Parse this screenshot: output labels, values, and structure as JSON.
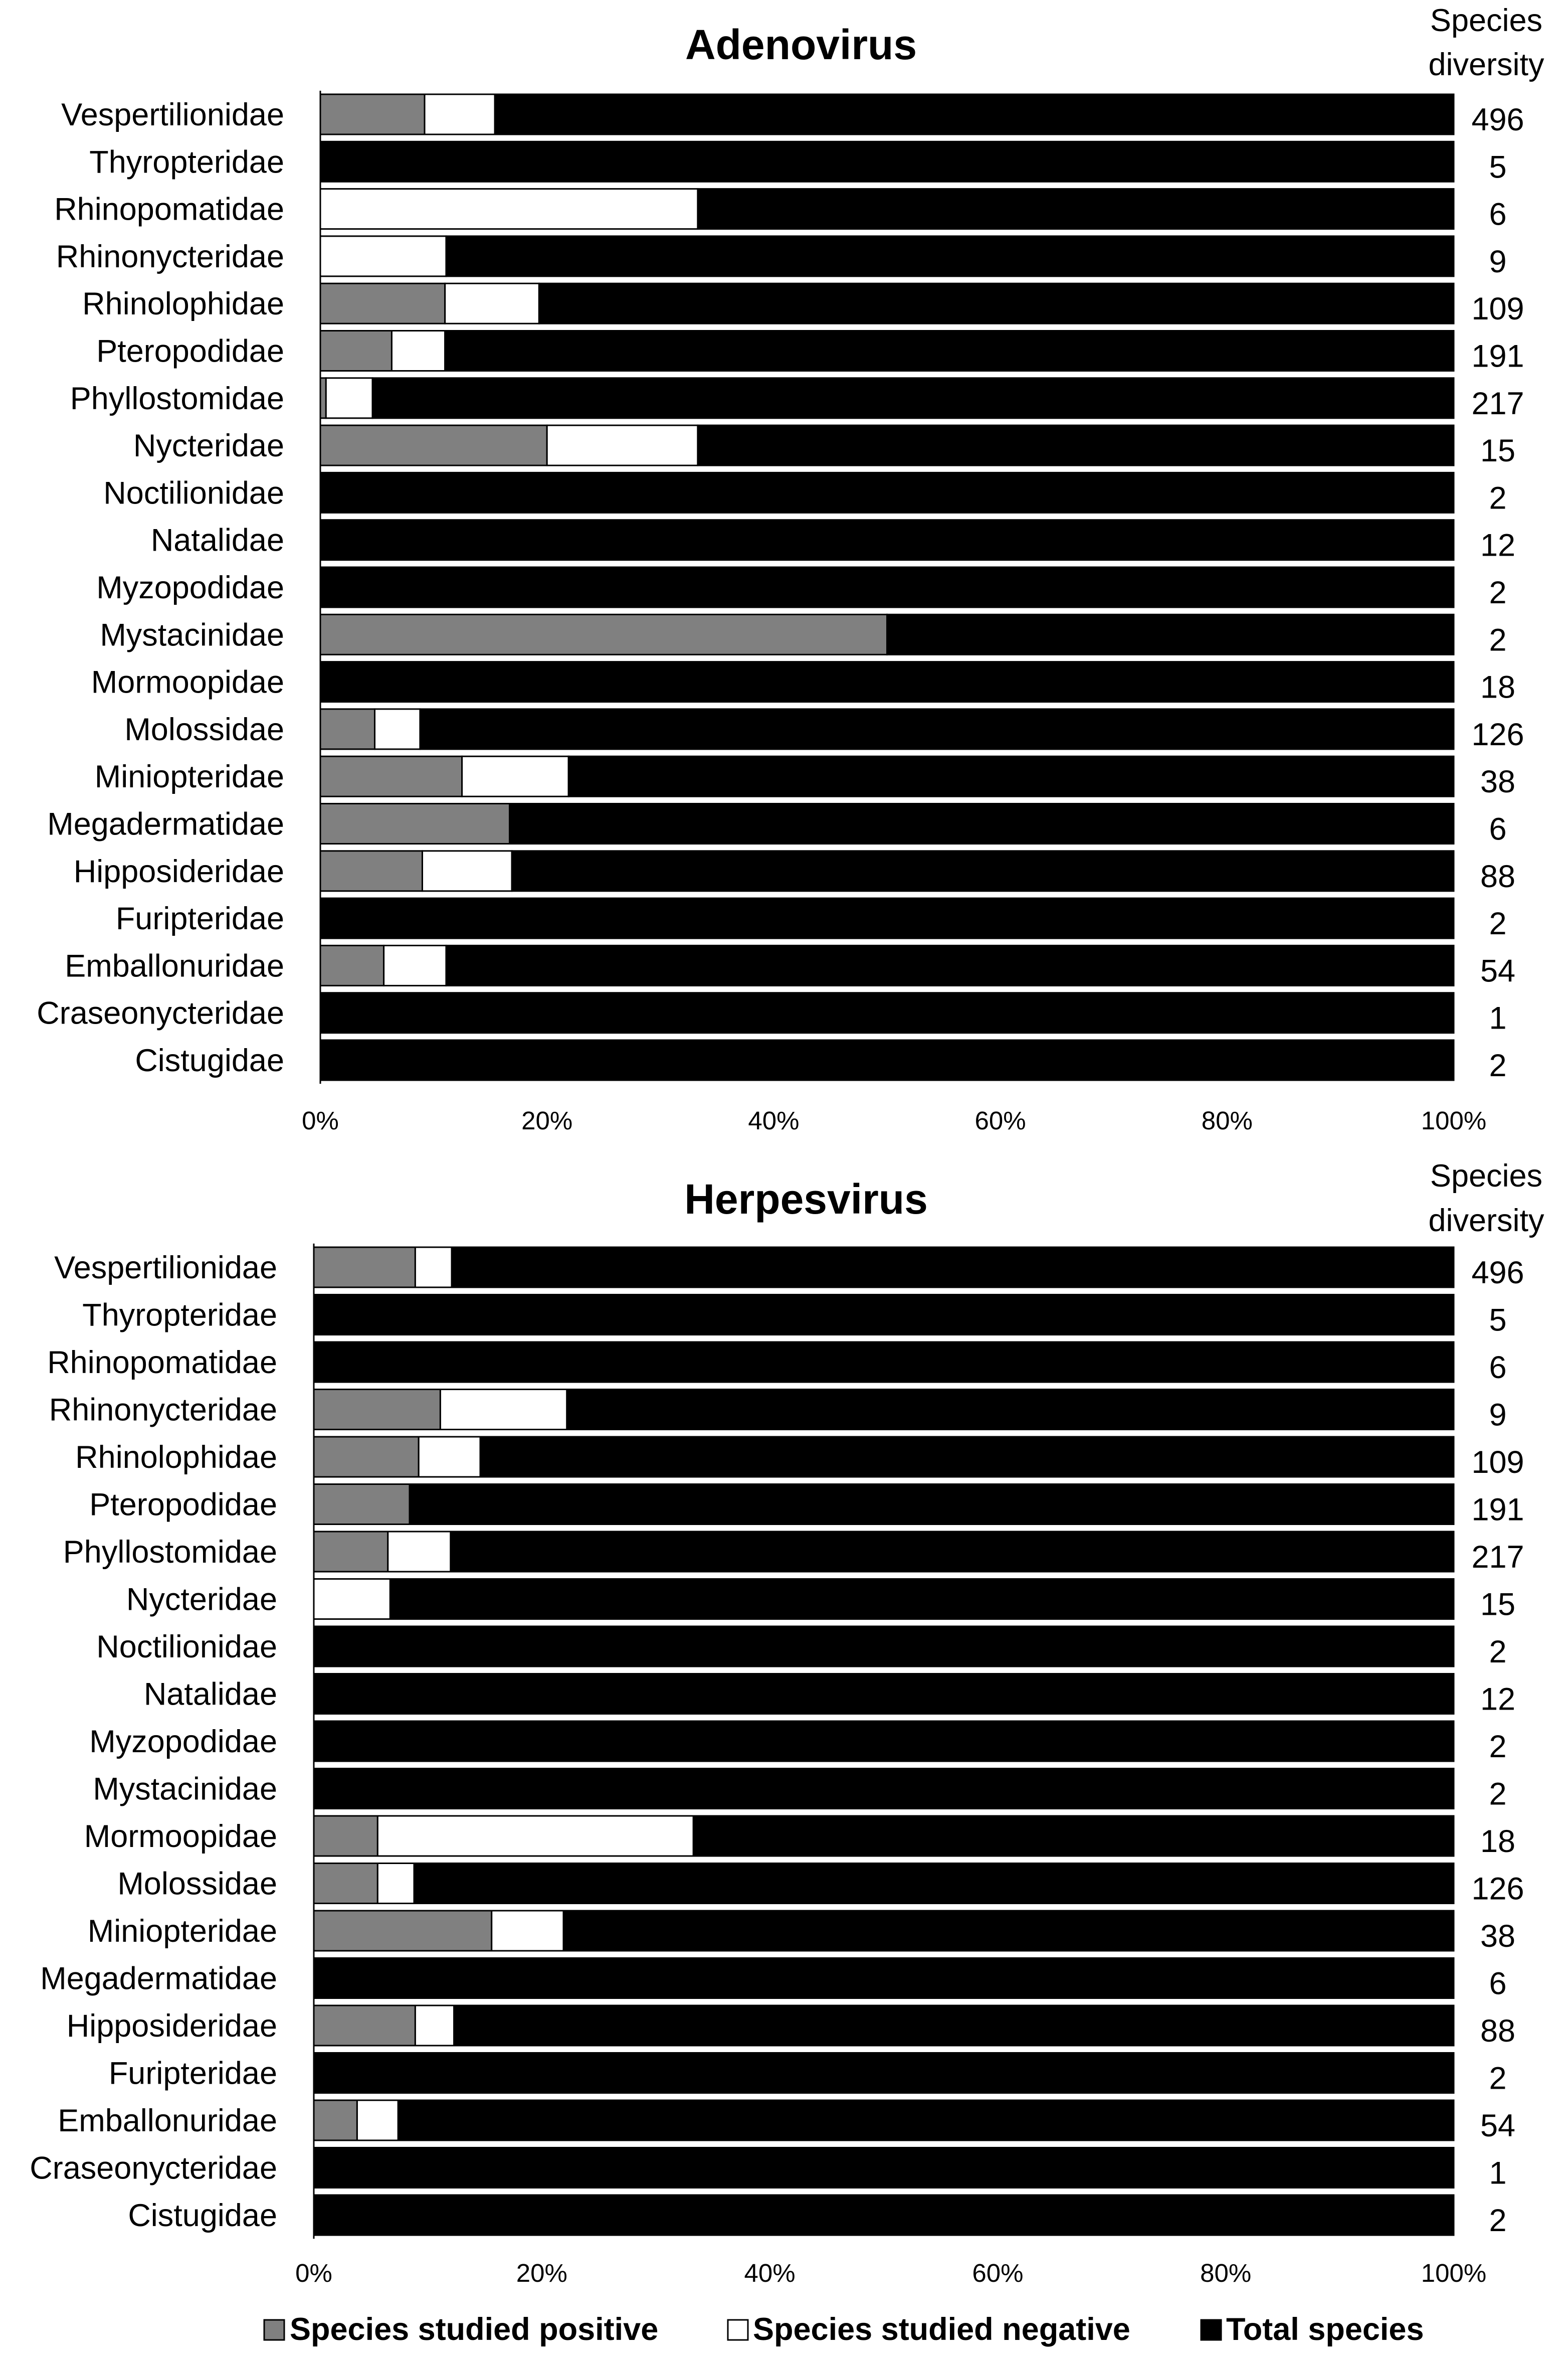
{
  "legend": [
    {
      "label": "Species studied positive",
      "color": "#808080"
    },
    {
      "label": "Species studied negative",
      "color": "#ffffff"
    },
    {
      "label": "Total species",
      "color": "#000000"
    }
  ],
  "colors": {
    "positive": "#808080",
    "negative": "#ffffff",
    "total": "#000000",
    "stroke": "#000000"
  },
  "chart_data": [
    {
      "type": "bar",
      "stacked": true,
      "orientation": "horizontal",
      "title": "Adenovirus",
      "right_header": [
        "Species",
        "diversity"
      ],
      "x_ticks": [
        "0%",
        "20%",
        "40%",
        "60%",
        "80%",
        "100%"
      ],
      "xlim": [
        0,
        100
      ],
      "categories": [
        "Vespertilionidae",
        "Thyropteridae",
        "Rhinopomatidae",
        "Rhinonycteridae",
        "Rhinolophidae",
        "Pteropodidae",
        "Phyllostomidae",
        "Nycteridae",
        "Noctilionidae",
        "Natalidae",
        "Myzopodidae",
        "Mystacinidae",
        "Mormoopidae",
        "Molossidae",
        "Miniopteridae",
        "Megadermatidae",
        "Hipposideridae",
        "Furipteridae",
        "Emballonuridae",
        "Craseonycteridae",
        "Cistugidae"
      ],
      "species_diversity": [
        "496",
        "5",
        "6",
        "9",
        "109",
        "191",
        "217",
        "15",
        "2",
        "12",
        "2",
        "2",
        "18",
        "126",
        "38",
        "6",
        "88",
        "2",
        "54",
        "1",
        "2"
      ],
      "series": [
        {
          "name": "Species studied positive",
          "values": [
            9.2,
            0,
            0,
            0,
            11.0,
            6.3,
            0.5,
            20.0,
            0,
            0,
            0,
            50.0,
            0,
            4.8,
            12.5,
            16.7,
            9.0,
            0,
            5.6,
            0,
            0
          ]
        },
        {
          "name": "Species studied negative",
          "values": [
            6.2,
            0,
            33.3,
            11.1,
            8.3,
            4.7,
            4.1,
            13.3,
            0,
            0,
            0,
            0,
            0,
            4.0,
            9.4,
            0,
            7.9,
            0,
            5.5,
            0,
            0
          ]
        },
        {
          "name": "Total species",
          "values": [
            84.6,
            100,
            66.7,
            88.9,
            80.7,
            89.0,
            95.4,
            66.7,
            100,
            100,
            100,
            50.0,
            100,
            91.2,
            78.1,
            83.3,
            83.1,
            100,
            88.9,
            100,
            100
          ]
        }
      ]
    },
    {
      "type": "bar",
      "stacked": true,
      "orientation": "horizontal",
      "title": "Herpesvirus",
      "right_header": [
        "Species",
        "diversity"
      ],
      "x_ticks": [
        "0%",
        "20%",
        "40%",
        "60%",
        "80%",
        "100%"
      ],
      "xlim": [
        0,
        100
      ],
      "categories": [
        "Vespertilionidae",
        "Thyropteridae",
        "Rhinopomatidae",
        "Rhinonycteridae",
        "Rhinolophidae",
        "Pteropodidae",
        "Phyllostomidae",
        "Nycteridae",
        "Noctilionidae",
        "Natalidae",
        "Myzopodidae",
        "Mystacinidae",
        "Mormoopidae",
        "Molossidae",
        "Miniopteridae",
        "Megadermatidae",
        "Hipposideridae",
        "Furipteridae",
        "Emballonuridae",
        "Craseonycteridae",
        "Cistugidae"
      ],
      "species_diversity": [
        "496",
        "5",
        "6",
        "9",
        "109",
        "191",
        "217",
        "15",
        "2",
        "12",
        "2",
        "2",
        "18",
        "126",
        "38",
        "6",
        "88",
        "2",
        "54",
        "1",
        "2"
      ],
      "series": [
        {
          "name": "Species studied positive",
          "values": [
            8.9,
            0,
            0,
            11.1,
            9.2,
            8.4,
            6.5,
            0,
            0,
            0,
            0,
            0,
            5.6,
            5.6,
            15.6,
            0,
            8.9,
            0,
            3.8,
            0,
            0
          ]
        },
        {
          "name": "Species studied negative",
          "values": [
            3.2,
            0,
            0,
            11.1,
            5.4,
            0,
            5.5,
            6.7,
            0,
            0,
            0,
            0,
            27.7,
            3.2,
            6.3,
            0,
            3.4,
            0,
            3.6,
            0,
            0
          ]
        },
        {
          "name": "Total species",
          "values": [
            87.9,
            100,
            100,
            77.8,
            85.4,
            91.6,
            88.0,
            93.3,
            100,
            100,
            100,
            100,
            66.7,
            91.2,
            78.1,
            100,
            87.7,
            100,
            92.6,
            100,
            100
          ]
        }
      ]
    }
  ]
}
